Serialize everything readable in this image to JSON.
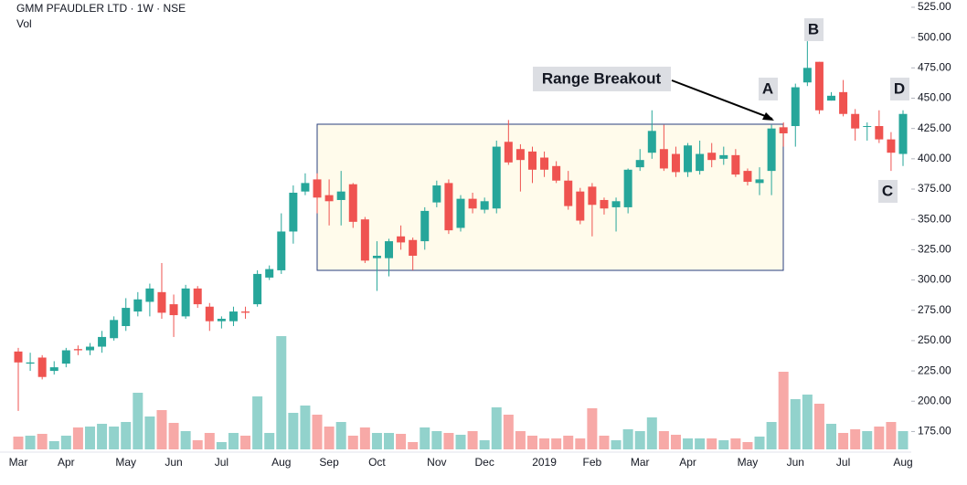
{
  "chart_data": {
    "type": "candlestick",
    "title": "GMM PFAUDLER LTD · 1W · NSE",
    "subtitle": "Vol",
    "categories": [
      "Mar",
      null,
      null,
      null,
      "Apr",
      null,
      null,
      null,
      null,
      "May",
      null,
      null,
      null,
      "Jun",
      null,
      null,
      null,
      "Jul",
      null,
      null,
      null,
      null,
      "Aug",
      null,
      null,
      null,
      "Sep",
      null,
      null,
      null,
      "Oct",
      null,
      null,
      null,
      null,
      "Nov",
      null,
      null,
      null,
      "Dec",
      null,
      null,
      null,
      null,
      "2019",
      null,
      null,
      null,
      "Feb",
      null,
      null,
      null,
      "Mar",
      null,
      null,
      null,
      "Apr",
      null,
      null,
      null,
      null,
      "May",
      null,
      null,
      null,
      "Jun",
      null,
      null,
      null,
      "Jul",
      null,
      null,
      null,
      null,
      "Aug"
    ],
    "open": [
      241,
      231,
      236,
      225,
      231,
      243,
      242,
      245,
      252,
      262,
      274,
      282,
      290,
      280,
      270,
      293,
      278,
      266,
      266,
      274,
      280,
      302,
      308,
      340,
      373,
      383,
      370,
      366,
      379,
      350,
      318,
      318,
      336,
      333,
      332,
      364,
      380,
      343,
      367,
      358,
      359,
      414,
      408,
      406,
      401,
      394,
      382,
      373,
      377,
      366,
      360,
      360,
      393,
      405,
      408,
      404,
      389,
      390,
      405,
      400,
      403,
      390,
      380,
      390,
      426,
      427,
      463,
      480,
      448,
      455,
      437,
      427,
      427,
      416,
      404
    ],
    "high": [
      244,
      240,
      238,
      233,
      244,
      246,
      248,
      258,
      270,
      285,
      290,
      297,
      314,
      288,
      296,
      295,
      281,
      270,
      278,
      278,
      308,
      312,
      355,
      378,
      388,
      388,
      383,
      390,
      380,
      352,
      332,
      334,
      345,
      335,
      360,
      382,
      383,
      370,
      372,
      368,
      415,
      432,
      412,
      410,
      406,
      398,
      390,
      376,
      380,
      368,
      368,
      392,
      408,
      440,
      428,
      410,
      413,
      415,
      413,
      410,
      408,
      392,
      393,
      428,
      430,
      462,
      497,
      480,
      455,
      465,
      441,
      430,
      440,
      422,
      440
    ],
    "low": [
      192,
      225,
      218,
      222,
      228,
      238,
      238,
      240,
      250,
      258,
      270,
      270,
      268,
      253,
      268,
      277,
      258,
      260,
      262,
      268,
      278,
      300,
      305,
      330,
      370,
      355,
      345,
      345,
      343,
      314,
      291,
      303,
      325,
      308,
      325,
      360,
      338,
      340,
      355,
      355,
      355,
      395,
      373,
      380,
      385,
      380,
      358,
      346,
      336,
      354,
      340,
      355,
      390,
      400,
      390,
      385,
      385,
      387,
      393,
      395,
      385,
      378,
      370,
      370,
      410,
      410,
      460,
      437,
      448,
      435,
      415,
      415,
      413,
      390,
      394
    ],
    "close": [
      232,
      232,
      220,
      228,
      242,
      242,
      245,
      253,
      267,
      277,
      284,
      293,
      273,
      271,
      293,
      280,
      266,
      268,
      274,
      273,
      305,
      309,
      340,
      372,
      380,
      368,
      365,
      373,
      348,
      316,
      320,
      332,
      331,
      320,
      357,
      378,
      341,
      367,
      359,
      365,
      410,
      397,
      399,
      391,
      391,
      382,
      361,
      349,
      362,
      359,
      365,
      391,
      399,
      423,
      392,
      389,
      411,
      404,
      399,
      403,
      387,
      381,
      383,
      425,
      421,
      459,
      475,
      440,
      452,
      437,
      425,
      427,
      416,
      405,
      437
    ],
    "volume": [
      14,
      15,
      17,
      9,
      15,
      24,
      25,
      28,
      25,
      30,
      62,
      36,
      43,
      29,
      20,
      10,
      18,
      8,
      18,
      15,
      58,
      18,
      124,
      40,
      48,
      38,
      25,
      30,
      15,
      24,
      18,
      18,
      17,
      8,
      24,
      20,
      18,
      16,
      20,
      10,
      46,
      38,
      20,
      15,
      12,
      12,
      15,
      12,
      45,
      15,
      10,
      22,
      20,
      35,
      20,
      16,
      12,
      12,
      12,
      10,
      12,
      8,
      14,
      30,
      85,
      55,
      60,
      50,
      28,
      18,
      22,
      20,
      25,
      30,
      20
    ],
    "up_color": "#26a69a",
    "down_color": "#ef5350",
    "volume_up_color": "#92d2cc",
    "volume_down_color": "#f7a9a7",
    "ylim": [
      158,
      531
    ],
    "yticks": [
      {
        "value": 175,
        "label": "175.00"
      },
      {
        "value": 200,
        "label": "200.00"
      },
      {
        "value": 225,
        "label": "225.00"
      },
      {
        "value": 250,
        "label": "250.00"
      },
      {
        "value": 275,
        "label": "275.00"
      },
      {
        "value": 300,
        "label": "300.00"
      },
      {
        "value": 325,
        "label": "325.00"
      },
      {
        "value": 350,
        "label": "350.00"
      },
      {
        "value": 375,
        "label": "375.00"
      },
      {
        "value": 400,
        "label": "400.00"
      },
      {
        "value": 425,
        "label": "425.00"
      },
      {
        "value": 450,
        "label": "450.00"
      },
      {
        "value": 475,
        "label": "475.00"
      },
      {
        "value": 500,
        "label": "500.00"
      },
      {
        "value": 525,
        "label": "525.00"
      }
    ],
    "annotations": [
      "Range Breakout",
      "A",
      "B",
      "C",
      "D"
    ]
  }
}
